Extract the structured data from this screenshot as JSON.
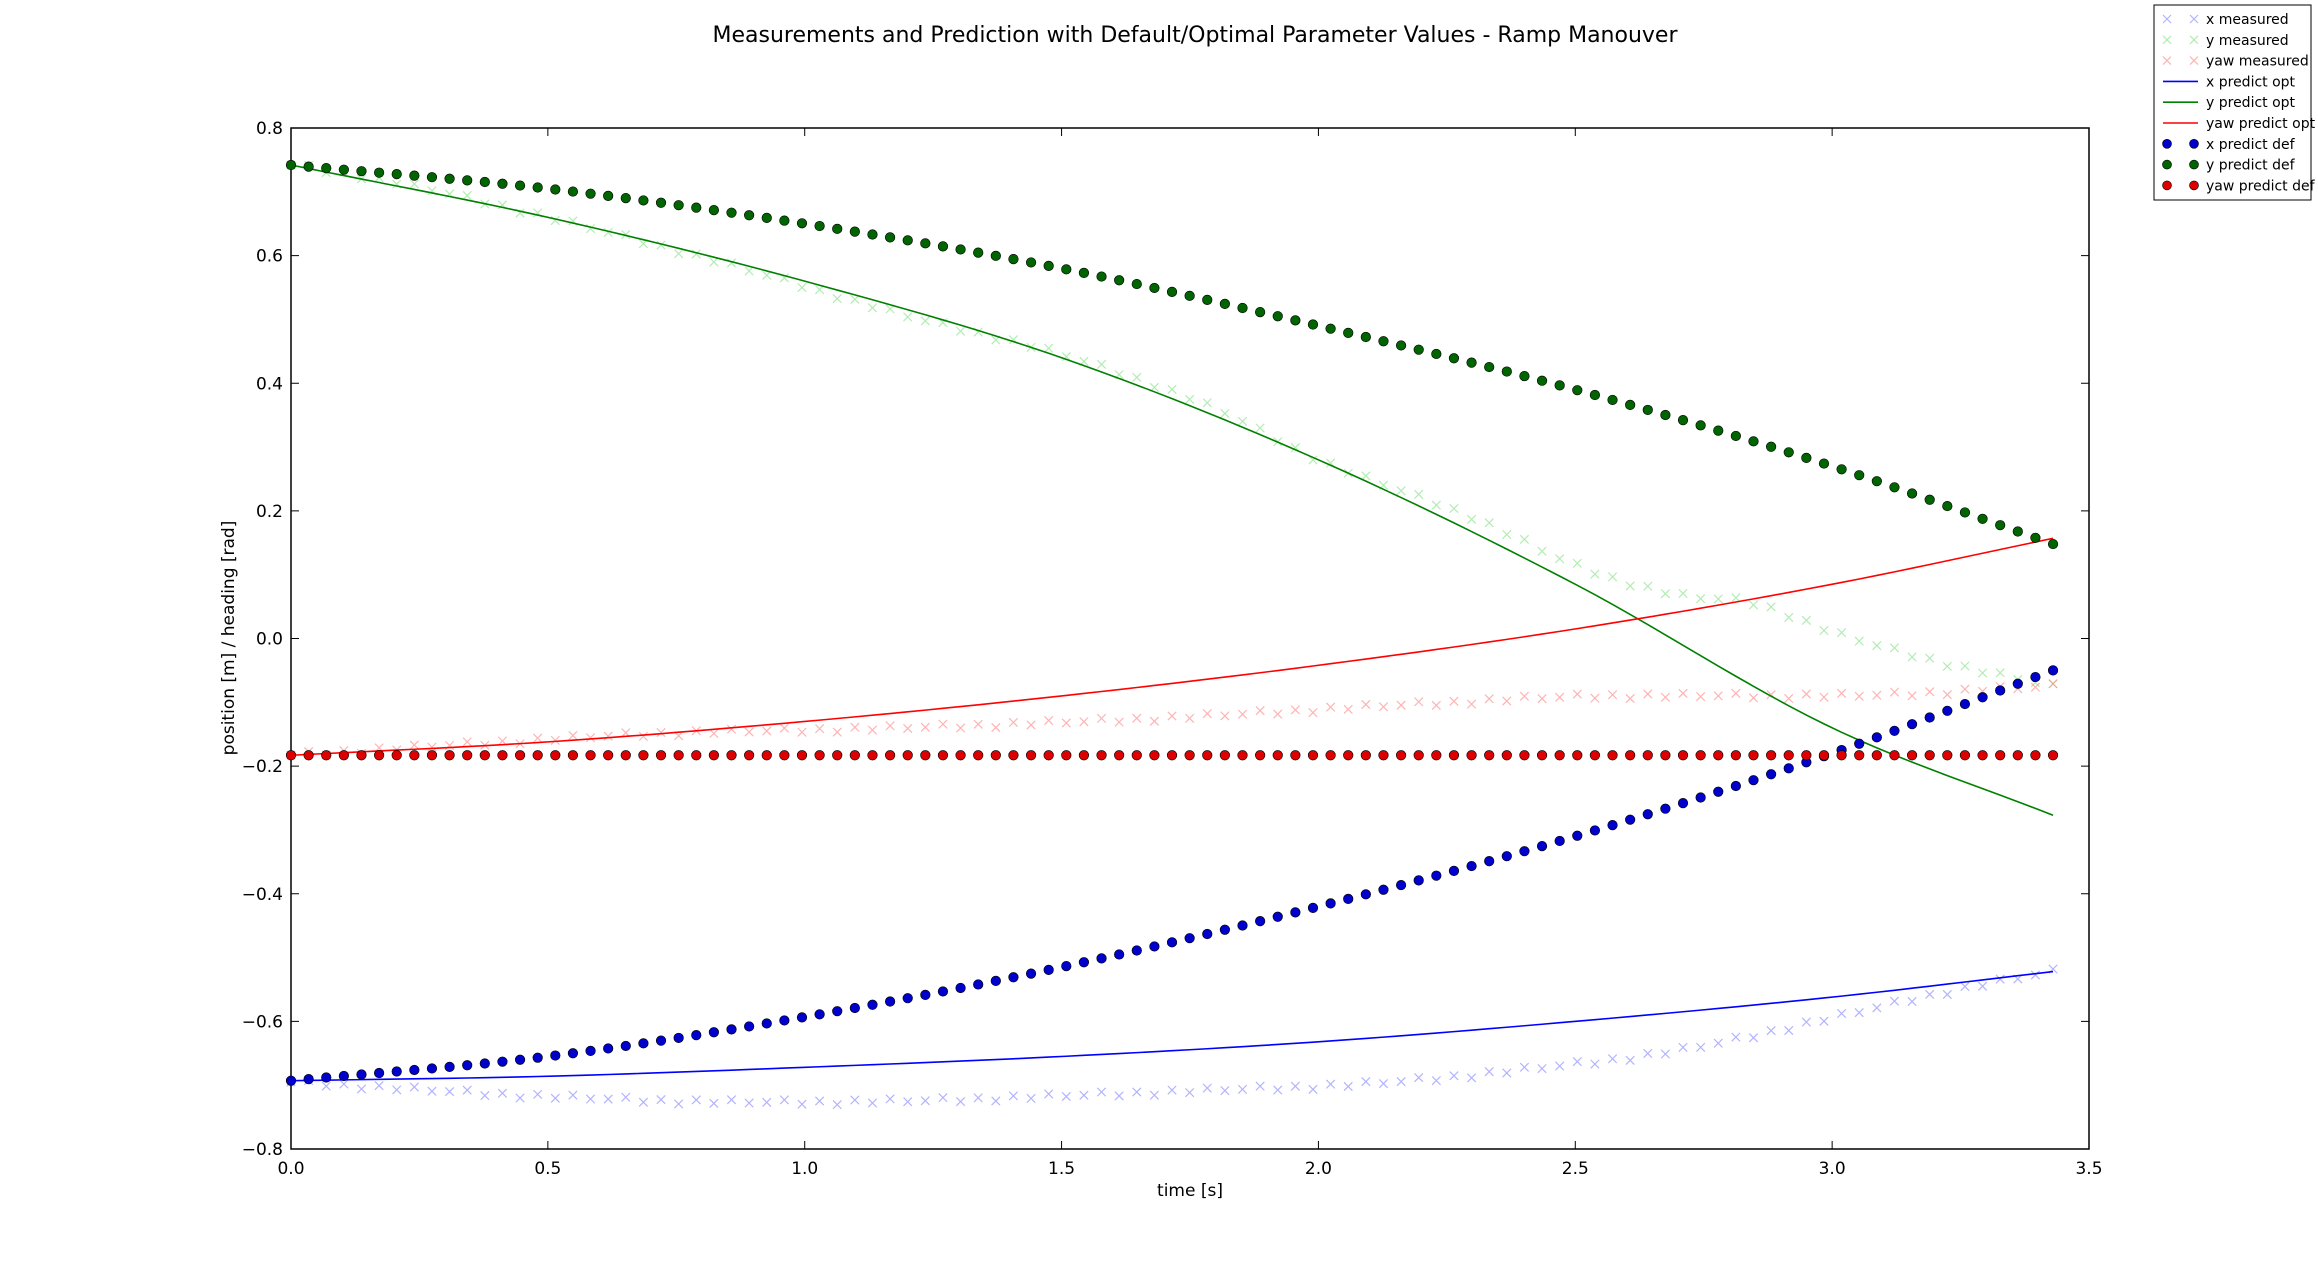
{
  "chart_data": {
    "type": "line",
    "title": "Measurements and Prediction with Default/Optimal Parameter Values - Ramp Manouver",
    "xlabel": "time [s]",
    "ylabel": "position [m] / heading [rad]",
    "xlim": [
      0.0,
      3.5
    ],
    "ylim": [
      -0.8,
      0.8
    ],
    "xticks": [
      0.0,
      0.5,
      1.0,
      1.5,
      2.0,
      2.5,
      3.0,
      3.5
    ],
    "xtick_labels": [
      "0.0",
      "0.5",
      "1.0",
      "1.5",
      "2.0",
      "2.5",
      "3.0",
      "3.5"
    ],
    "yticks": [
      -0.8,
      -0.6,
      -0.4,
      -0.2,
      0.0,
      0.2,
      0.4,
      0.6,
      0.8
    ],
    "ytick_labels": [
      "−0.8",
      "−0.6",
      "−0.4",
      "−0.2",
      "0.0",
      "0.2",
      "0.4",
      "0.6",
      "0.8"
    ],
    "grid": false,
    "legend_position": "top-right outside",
    "sample_count": 101,
    "t_end": 3.43,
    "series": [
      {
        "name": "x measured",
        "style": "x-marker",
        "color": "#8080ff",
        "opacity": 0.6,
        "anchors_t": [
          0.0,
          0.2,
          0.5,
          0.9,
          1.2,
          1.5,
          1.8,
          2.1,
          2.4,
          2.7,
          3.0,
          3.2,
          3.43
        ],
        "anchors_y": [
          -0.695,
          -0.705,
          -0.718,
          -0.727,
          -0.725,
          -0.717,
          -0.708,
          -0.698,
          -0.676,
          -0.646,
          -0.595,
          -0.558,
          -0.522
        ]
      },
      {
        "name": "y measured",
        "style": "x-marker",
        "color": "#7fe07f",
        "opacity": 0.6,
        "anchors_t": [
          0.0,
          0.2,
          0.5,
          0.9,
          1.2,
          1.5,
          1.8,
          2.0,
          2.3,
          2.5,
          2.7,
          2.85,
          3.0,
          3.2,
          3.43
        ],
        "anchors_y": [
          0.742,
          0.715,
          0.66,
          0.575,
          0.505,
          0.445,
          0.36,
          0.28,
          0.19,
          0.115,
          0.068,
          0.055,
          0.01,
          -0.035,
          -0.075
        ]
      },
      {
        "name": "yaw measured",
        "style": "x-marker",
        "color": "#ff8080",
        "opacity": 0.6,
        "anchors_t": [
          0.0,
          0.3,
          0.7,
          1.2,
          1.7,
          2.2,
          2.6,
          3.0,
          3.43
        ],
        "anchors_y": [
          -0.183,
          -0.168,
          -0.15,
          -0.14,
          -0.125,
          -0.103,
          -0.09,
          -0.09,
          -0.075
        ]
      },
      {
        "name": "x predict opt",
        "style": "line",
        "color": "#0000ff",
        "anchors_t": [
          0.0,
          0.5,
          1.0,
          1.5,
          2.0,
          2.5,
          3.0,
          3.43
        ],
        "anchors_y": [
          -0.693,
          -0.686,
          -0.672,
          -0.655,
          -0.632,
          -0.6,
          -0.562,
          -0.522
        ]
      },
      {
        "name": "y predict opt",
        "style": "line",
        "color": "#008000",
        "anchors_t": [
          0.0,
          0.5,
          1.0,
          1.5,
          2.0,
          2.5,
          3.0,
          3.43
        ],
        "anchors_y": [
          0.742,
          0.66,
          0.56,
          0.44,
          0.28,
          0.085,
          -0.14,
          -0.277
        ]
      },
      {
        "name": "yaw predict opt",
        "style": "line",
        "color": "#ff0000",
        "anchors_t": [
          0.0,
          0.5,
          1.0,
          1.5,
          2.0,
          2.5,
          3.0,
          3.43
        ],
        "anchors_y": [
          -0.183,
          -0.162,
          -0.13,
          -0.09,
          -0.042,
          0.015,
          0.085,
          0.157
        ]
      },
      {
        "name": "x predict def",
        "style": "dot",
        "color": "#0000cc",
        "anchors_t": [
          0.0,
          0.5,
          1.0,
          1.5,
          2.0,
          2.5,
          3.0,
          3.43
        ],
        "anchors_y": [
          -0.693,
          -0.655,
          -0.593,
          -0.515,
          -0.42,
          -0.31,
          -0.18,
          -0.05
        ]
      },
      {
        "name": "y predict def",
        "style": "dot",
        "color": "#006400",
        "anchors_t": [
          0.0,
          0.5,
          1.0,
          1.5,
          2.0,
          2.5,
          3.0,
          3.43
        ],
        "anchors_y": [
          0.742,
          0.705,
          0.65,
          0.58,
          0.49,
          0.39,
          0.27,
          0.148
        ]
      },
      {
        "name": "yaw predict def",
        "style": "dot",
        "color": "#dd0000",
        "anchors_t": [
          0.0,
          3.43
        ],
        "anchors_y": [
          -0.183,
          -0.183
        ]
      }
    ]
  }
}
